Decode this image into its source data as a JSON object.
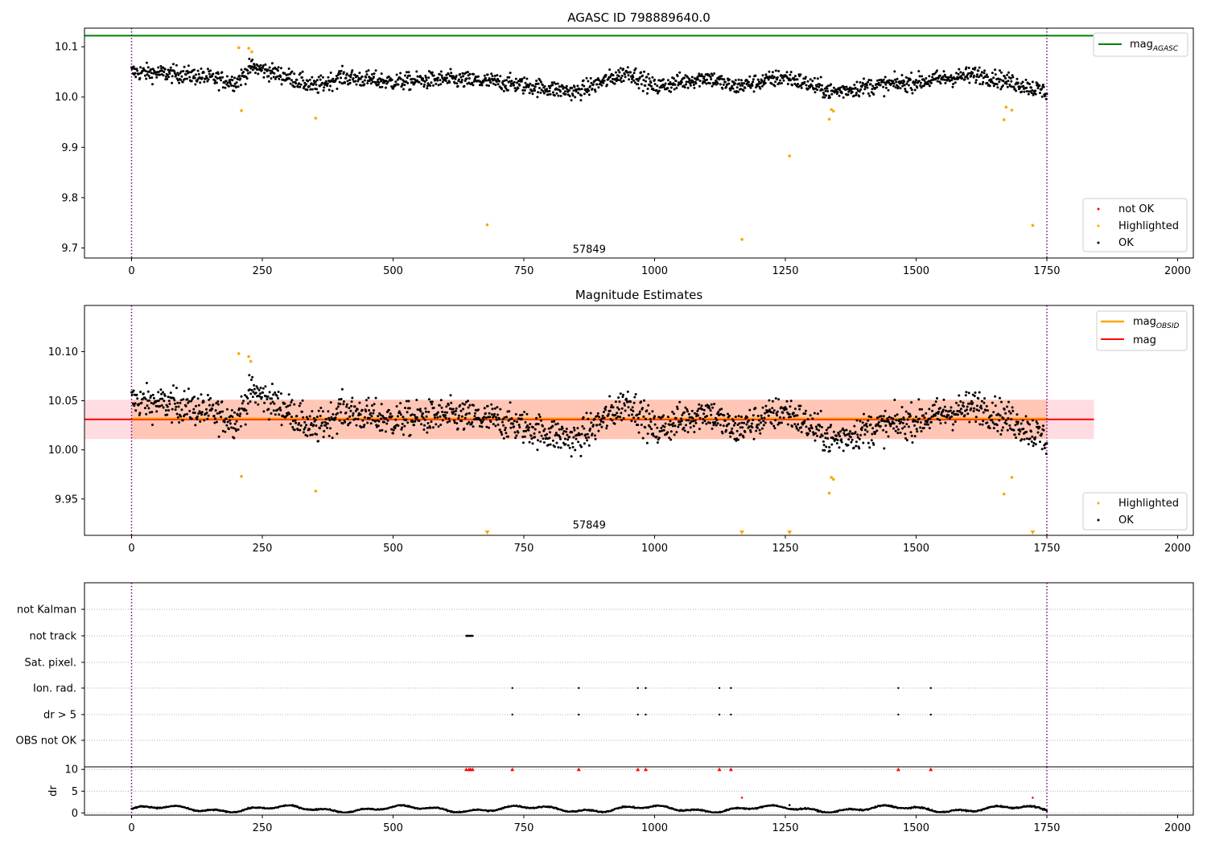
{
  "chart_data": [
    {
      "type": "scatter",
      "title": "AGASC ID 798889640.0",
      "xlabel": "",
      "ylabel": "",
      "xlim": [
        -90,
        2030
      ],
      "ylim": [
        9.68,
        10.137
      ],
      "xticks": [
        0,
        250,
        500,
        750,
        1000,
        1250,
        1500,
        1750,
        2000
      ],
      "yticks": [
        9.7,
        9.8,
        9.9,
        10.0,
        10.1
      ],
      "ytick_labels": [
        "9.7",
        "9.8",
        "9.9",
        "10.0",
        "10.1"
      ],
      "grid": false,
      "vlines": [
        0,
        1750
      ],
      "annotation": {
        "text": "57849",
        "x": 875,
        "y": 9.69
      },
      "legend_lines": {
        "placement": "top-right",
        "entries": [
          {
            "label": "mag",
            "sub": "AGASC",
            "color": "#008000"
          }
        ]
      },
      "legend_points": {
        "placement": "lower-right",
        "entries": [
          {
            "label": "not OK",
            "color": "#ff0000"
          },
          {
            "label": "Highlighted",
            "color": "#ffa500"
          },
          {
            "label": "OK",
            "color": "#000000"
          }
        ]
      },
      "mag_agasc": 10.122,
      "ok_points": {
        "description": "about 1750 black points, one per sample index 0-1750",
        "baseline": 10.03,
        "spread": 0.045,
        "trend_x": [
          0,
          100,
          200,
          230,
          300,
          350,
          400,
          500,
          600,
          700,
          850,
          950,
          1000,
          1100,
          1150,
          1250,
          1340,
          1400,
          1500,
          1620,
          1700,
          1750
        ],
        "trend_y": [
          10.05,
          10.045,
          10.03,
          10.06,
          10.04,
          10.02,
          10.04,
          10.03,
          10.035,
          10.03,
          10.01,
          10.05,
          10.02,
          10.04,
          10.02,
          10.04,
          10.01,
          10.02,
          10.03,
          10.045,
          10.025,
          10.01
        ]
      },
      "highlighted_points": [
        [
          205,
          10.098
        ],
        [
          224,
          10.097
        ],
        [
          230,
          10.09
        ],
        [
          210,
          9.973
        ],
        [
          352,
          9.958
        ],
        [
          680,
          9.746
        ],
        [
          1167,
          9.717
        ],
        [
          1258,
          9.883
        ],
        [
          1334,
          9.956
        ],
        [
          1338,
          9.975
        ],
        [
          1342,
          9.972
        ],
        [
          1668,
          9.955
        ],
        [
          1672,
          9.98
        ],
        [
          1683,
          9.974
        ],
        [
          1723,
          9.745
        ]
      ]
    },
    {
      "type": "scatter",
      "title": "Magnitude Estimates",
      "xlabel": "",
      "ylabel": "",
      "xlim": [
        -90,
        2030
      ],
      "ylim": [
        9.913,
        10.147
      ],
      "xticks": [
        0,
        250,
        500,
        750,
        1000,
        1250,
        1500,
        1750,
        2000
      ],
      "yticks": [
        9.95,
        10.0,
        10.05,
        10.1
      ],
      "ytick_labels": [
        "9.95",
        "10.00",
        "10.05",
        "10.10"
      ],
      "grid": false,
      "vlines": [
        0,
        1750
      ],
      "annotation": {
        "text": "57849",
        "x": 875,
        "y": 9.92
      },
      "legend_lines": {
        "placement": "top-right",
        "entries": [
          {
            "label": "mag",
            "sub": "OBSID",
            "color": "#ffa500"
          },
          {
            "label": "mag",
            "sub": "",
            "color": "#ff0000"
          }
        ]
      },
      "legend_points": {
        "placement": "lower-right",
        "entries": [
          {
            "label": "Highlighted",
            "color": "#ffa500"
          },
          {
            "label": "OK",
            "color": "#000000"
          }
        ]
      },
      "mag": 10.031,
      "mag_band": [
        10.011,
        10.051
      ],
      "mag_obsid": 10.032,
      "obsid_band": [
        10.011,
        10.051
      ],
      "band_x": [
        -90,
        1840
      ],
      "obsid_x": [
        0,
        1750
      ],
      "highlighted_points": [
        [
          205,
          10.098
        ],
        [
          224,
          10.095
        ],
        [
          228,
          10.09
        ],
        [
          210,
          9.973
        ],
        [
          352,
          9.958
        ],
        [
          1334,
          9.956
        ],
        [
          1338,
          9.972
        ],
        [
          1342,
          9.97
        ],
        [
          1668,
          9.955
        ],
        [
          1683,
          9.972
        ]
      ],
      "below_range_markers": [
        680,
        1167,
        1258,
        1723
      ]
    },
    {
      "type": "scatter",
      "title": "",
      "xlabel": "",
      "ylabel": "",
      "xlim": [
        -90,
        2030
      ],
      "grid": "dotted-horizontal",
      "vlines": [
        0,
        1750
      ],
      "categories": [
        "not Kalman",
        "not track",
        "Sat. pixel.",
        "Ion. rad.",
        "dr > 5",
        "OBS not OK"
      ],
      "flags": {
        "not track": [
          [
            640,
            652
          ]
        ],
        "Ion. rad.": [
          728,
          855,
          968,
          983,
          1124,
          1146,
          1466,
          1528
        ],
        "dr > 5": [
          728,
          855,
          968,
          983,
          1124,
          1146,
          1466,
          1528
        ]
      }
    },
    {
      "type": "line",
      "title": "",
      "xlabel": "",
      "ylabel": "dr",
      "xlim": [
        -90,
        2030
      ],
      "ylim": [
        -0.5,
        10.6
      ],
      "xticks": [
        0,
        250,
        500,
        750,
        1000,
        1250,
        1500,
        1750,
        2000
      ],
      "yticks": [
        0,
        5,
        10
      ],
      "ytick_labels": [
        "0",
        "5",
        "10"
      ],
      "grid": "dotted-horizontal",
      "vlines": [
        0,
        1750
      ],
      "dr_baseline": 0.9,
      "dr_capped_markers": [
        640,
        645,
        648,
        652,
        728,
        855,
        968,
        983,
        1124,
        1146,
        1466,
        1528
      ],
      "dr_outliers": [
        [
          1167,
          3.5
        ],
        [
          1723,
          3.5
        ],
        [
          1258,
          1.8
        ]
      ]
    }
  ],
  "colors": {
    "ok": "#000000",
    "highlighted": "#ffa500",
    "not_ok": "#ff0000",
    "agasc": "#008000",
    "mag": "#ff0000",
    "obsid": "#ffa500",
    "vline": "#800080",
    "band_mag": "#ffc0cb",
    "band_obsid": "#ffb08a"
  }
}
